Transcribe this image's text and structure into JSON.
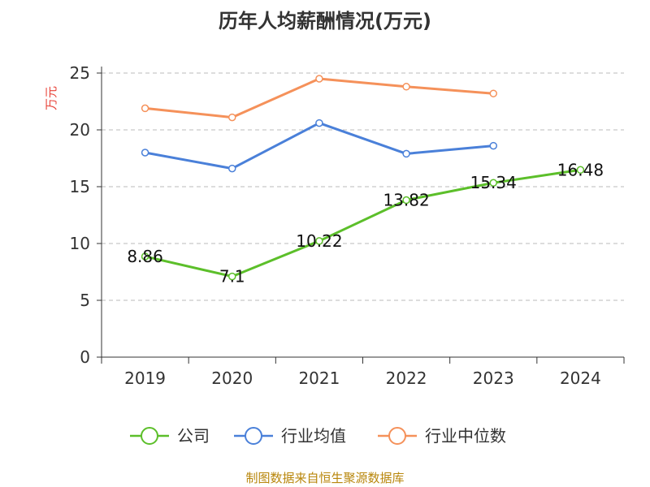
{
  "chart_data": {
    "type": "line",
    "title": "历年人均薪酬情况(万元)",
    "ylabel": "万元",
    "xlabel": "",
    "ylim": [
      0,
      25
    ],
    "yticks": [
      0,
      5,
      10,
      15,
      20,
      25
    ],
    "grid": true,
    "legend_position": "bottom",
    "categories": [
      "2019",
      "2020",
      "2021",
      "2022",
      "2023",
      "2024"
    ],
    "series": [
      {
        "name": "公司",
        "color": "#5cbf2a",
        "values": [
          8.86,
          7.1,
          10.22,
          13.82,
          15.34,
          16.48
        ],
        "labels": [
          "8.86",
          "7.1",
          "10.22",
          "13.82",
          "15.34",
          "16.48"
        ]
      },
      {
        "name": "行业均值",
        "color": "#4a80d9",
        "values": [
          18.0,
          16.6,
          20.6,
          17.9,
          18.6,
          null
        ]
      },
      {
        "name": "行业中位数",
        "color": "#f5915a",
        "values": [
          21.9,
          21.1,
          24.5,
          23.8,
          23.2,
          null
        ]
      }
    ]
  },
  "source": "制图数据来自恒生聚源数据库"
}
